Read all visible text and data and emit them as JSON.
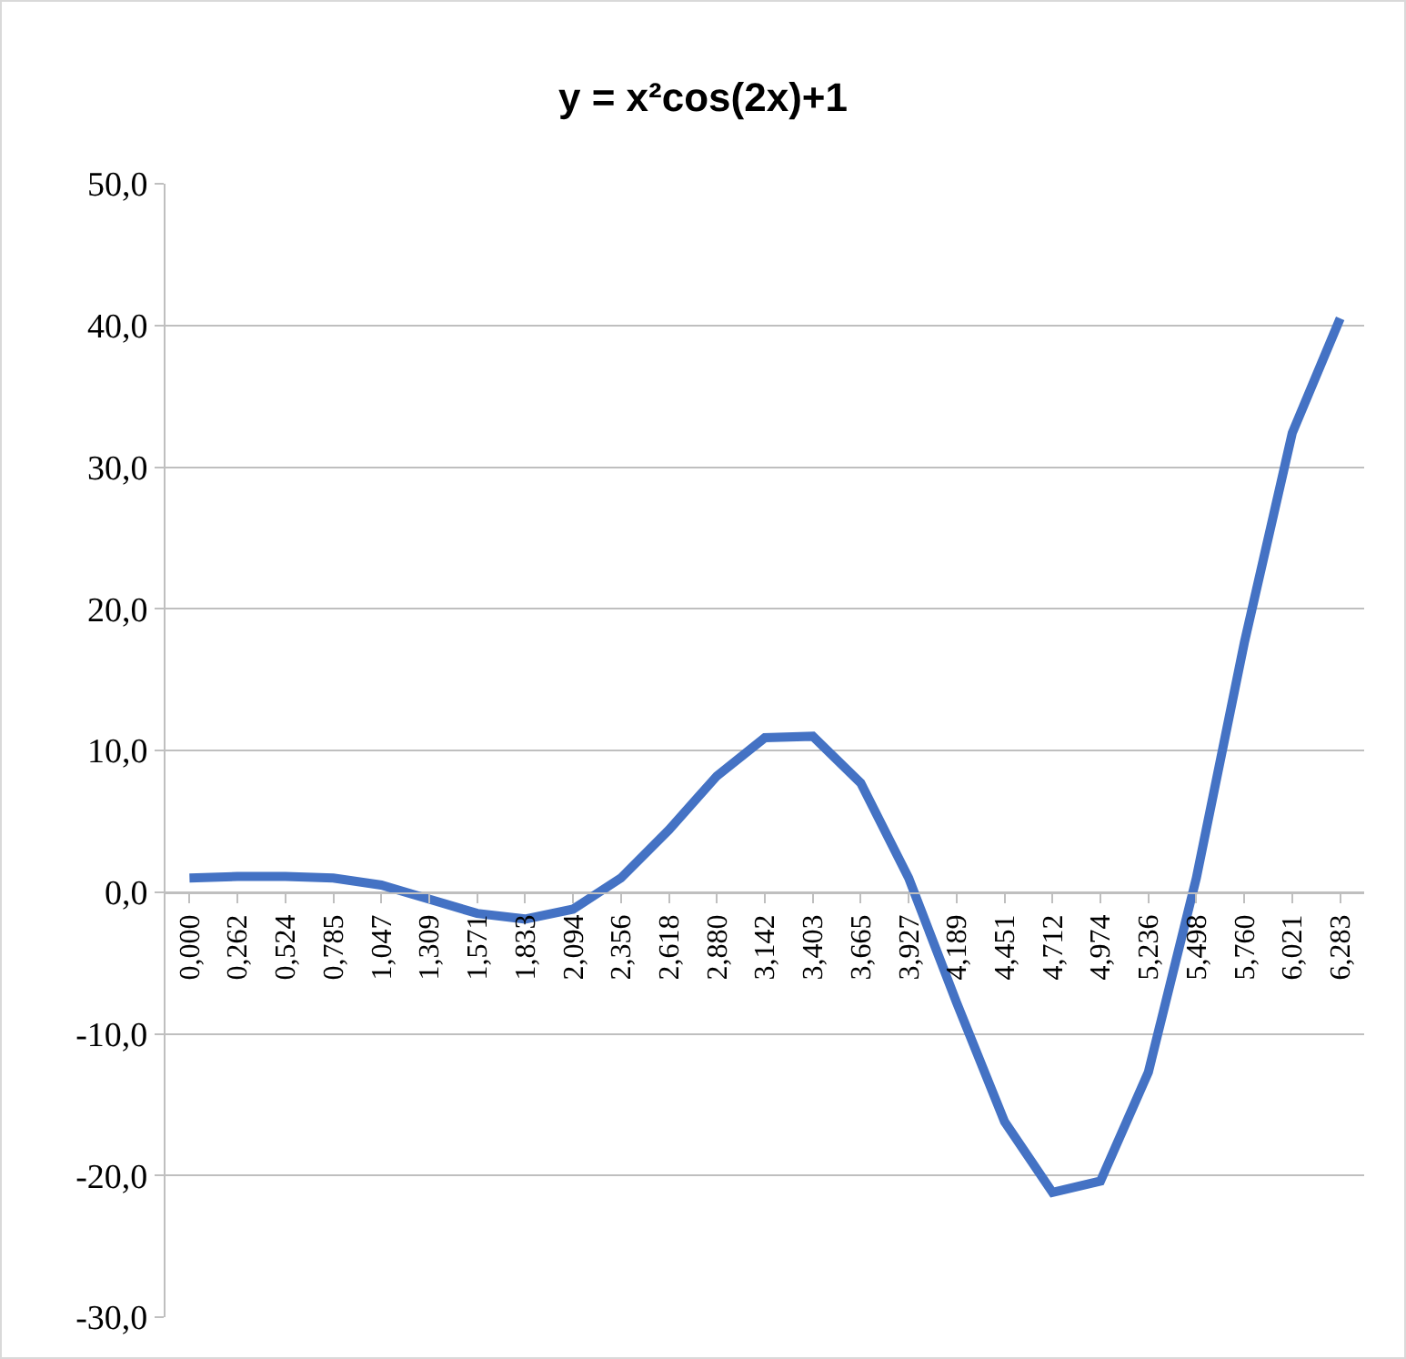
{
  "chart_data": {
    "type": "line",
    "title": "y = x²cos(2x)+1",
    "categories": [
      "0,000",
      "0,262",
      "0,524",
      "0,785",
      "1,047",
      "1,309",
      "1,571",
      "1,833",
      "2,094",
      "2,356",
      "2,618",
      "2,880",
      "3,142",
      "3,403",
      "3,665",
      "3,927",
      "4,189",
      "4,451",
      "4,712",
      "4,974",
      "5,236",
      "5,498",
      "5,760",
      "6,021",
      "6,283"
    ],
    "series": [
      {
        "color": "#4472c4",
        "values": [
          1.0,
          1.1,
          1.1,
          1.0,
          0.5,
          -0.5,
          -1.5,
          -1.9,
          -1.2,
          1.0,
          4.4,
          8.2,
          10.9,
          11.0,
          7.7,
          1.0,
          -7.8,
          -16.2,
          -21.2,
          -20.4,
          -12.7,
          1.0,
          17.6,
          32.4,
          40.5
        ]
      }
    ],
    "ylim": [
      -30,
      50
    ],
    "yticks": [
      {
        "value": -30,
        "label": "-30,0"
      },
      {
        "value": -20,
        "label": "-20,0"
      },
      {
        "value": -10,
        "label": "-10,0"
      },
      {
        "value": 0,
        "label": "0,0"
      },
      {
        "value": 10,
        "label": "10,0"
      },
      {
        "value": 20,
        "label": "20,0"
      },
      {
        "value": 30,
        "label": "30,0"
      },
      {
        "value": 40,
        "label": "40,0"
      },
      {
        "value": 50,
        "label": "50,0"
      }
    ],
    "grid": "y",
    "legend": false,
    "marker": "none",
    "line_style": "solid"
  }
}
